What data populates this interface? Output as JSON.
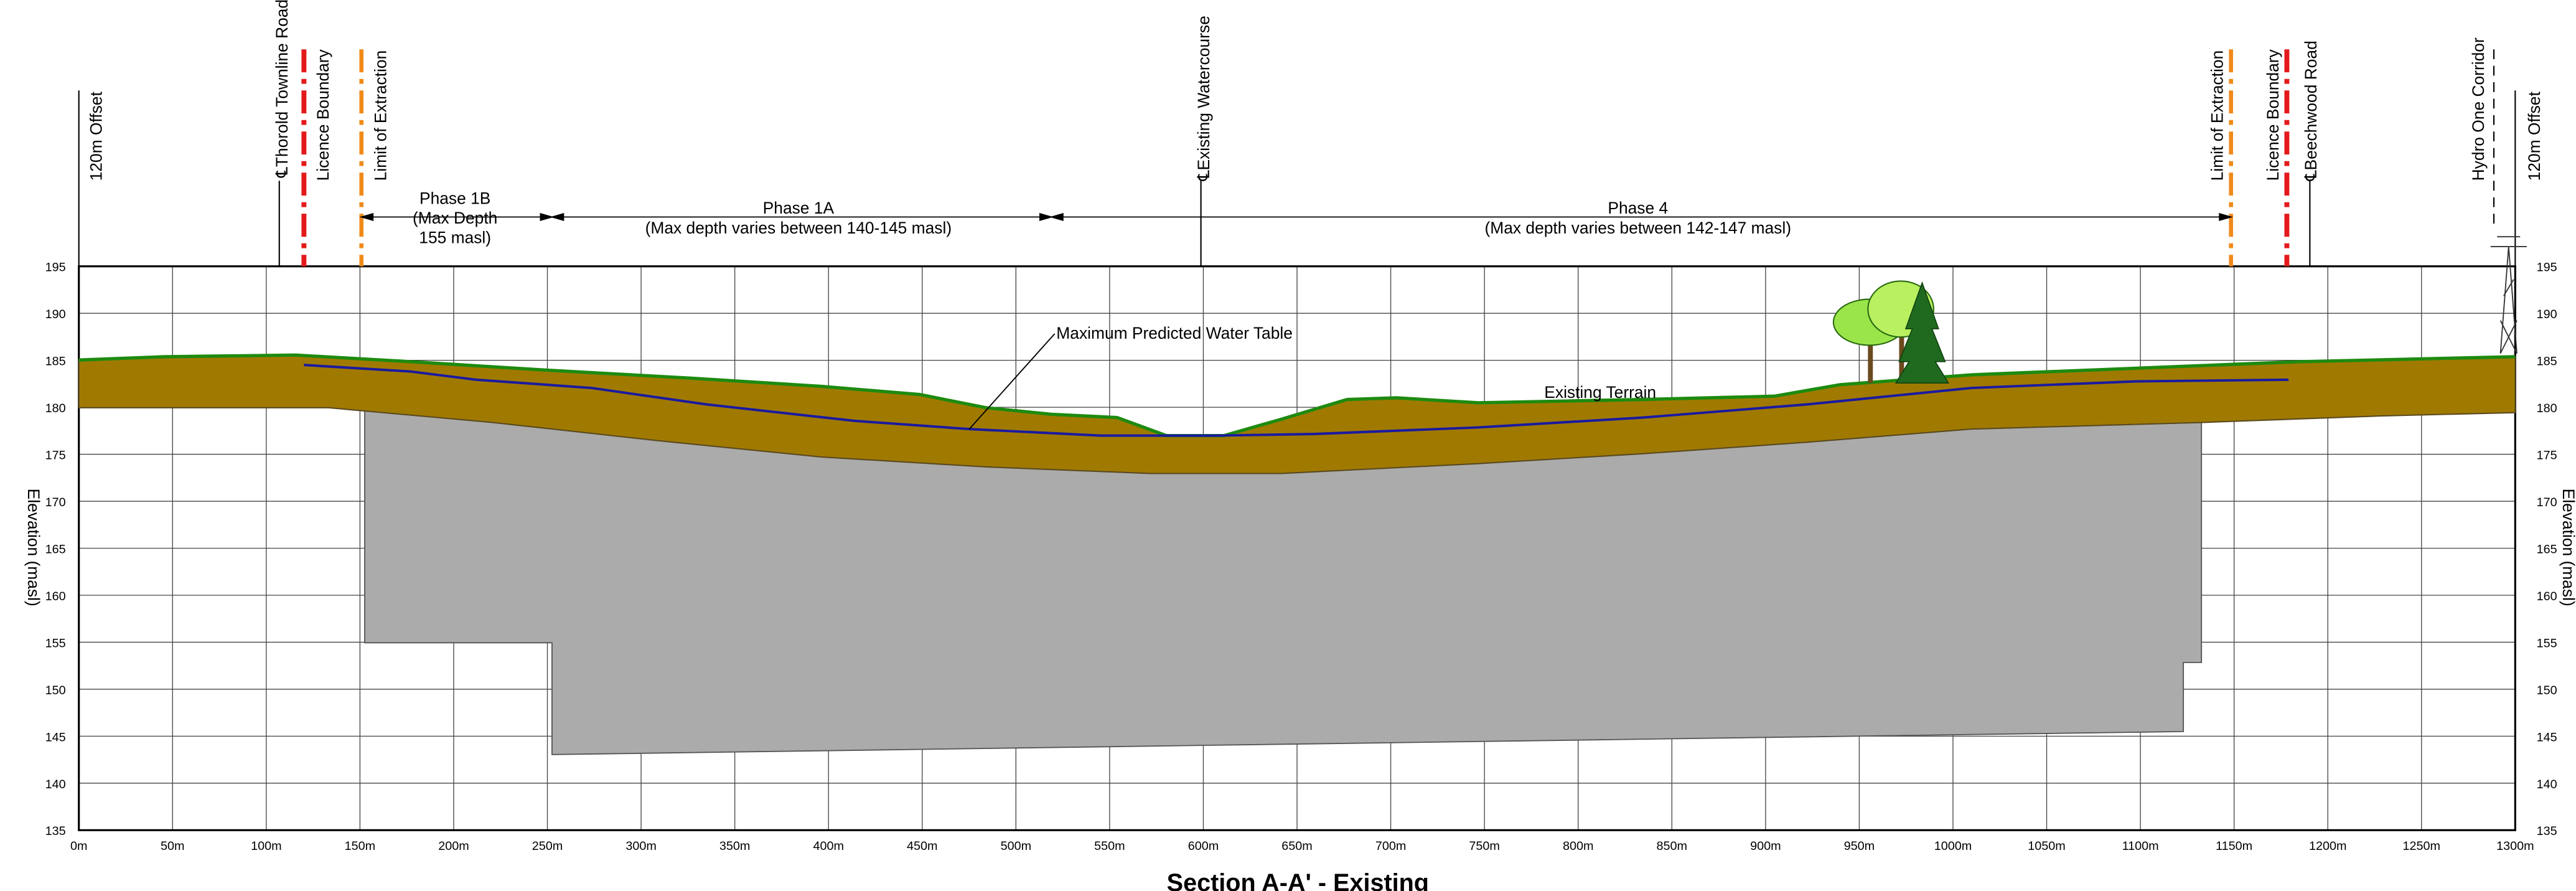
{
  "title": "Section A-A' - Existing",
  "top_labels": [
    "120m Offset",
    "℄Thorold Townline Road",
    "Licence Boundary",
    "Limit of Extraction",
    "℄Existing Watercourse",
    "Limit of Extraction",
    "Licence Boundary",
    "℄Beechwood Road",
    "Hydro One Corridor",
    "120m Offset"
  ],
  "phases": [
    {
      "lines": [
        "Phase 1B",
        "(Max Depth",
        "155 masl)"
      ]
    },
    {
      "lines": [
        "Phase 1A",
        "(Max depth varies between 140-145 masl)"
      ]
    },
    {
      "lines": [
        "Phase 4",
        "(Max depth varies between 142-147 masl)"
      ]
    }
  ],
  "annotations": {
    "water_table": "Maximum Predicted Water Table",
    "terrain": "Existing Terrain"
  },
  "axis": {
    "title": "Elevation (masl)",
    "x_ticks": [
      "0m",
      "50m",
      "100m",
      "150m",
      "200m",
      "250m",
      "300m",
      "350m",
      "400m",
      "450m",
      "500m",
      "550m",
      "600m",
      "650m",
      "700m",
      "750m",
      "800m",
      "850m",
      "900m",
      "950m",
      "1000m",
      "1050m",
      "1100m",
      "1150m",
      "1200m",
      "1250m",
      "1300m"
    ],
    "y_ticks": [
      195,
      190,
      185,
      180,
      175,
      170,
      165,
      160,
      155,
      150,
      145,
      140,
      135
    ]
  }
}
